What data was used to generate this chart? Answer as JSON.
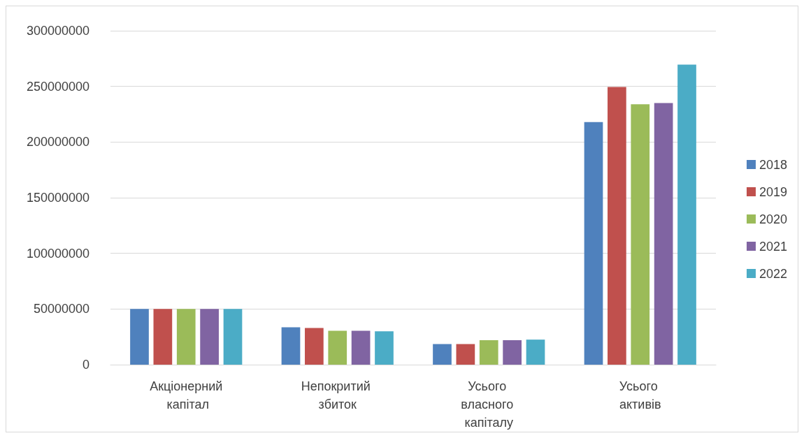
{
  "chart_data": {
    "type": "bar",
    "categories": [
      "Акціонерний капітал",
      "Непокритий збиток",
      "Усього власного капіталу",
      "Усього активів"
    ],
    "series": [
      {
        "name": "2018",
        "color": "#4f81bd",
        "values": [
          50000000,
          33500000,
          18500000,
          218000000
        ]
      },
      {
        "name": "2019",
        "color": "#c0504d",
        "values": [
          50000000,
          33000000,
          18500000,
          249500000
        ]
      },
      {
        "name": "2020",
        "color": "#9bbb59",
        "values": [
          50000000,
          30500000,
          22000000,
          234000000
        ]
      },
      {
        "name": "2021",
        "color": "#8064a2",
        "values": [
          50000000,
          30500000,
          22000000,
          235000000
        ]
      },
      {
        "name": "2022",
        "color": "#4bacc6",
        "values": [
          50000000,
          30000000,
          22500000,
          269500000
        ]
      }
    ],
    "ylim": [
      0,
      300000000
    ],
    "yticks": [
      0,
      50000000,
      100000000,
      150000000,
      200000000,
      250000000,
      300000000
    ],
    "grid": "y",
    "legend": "right"
  }
}
